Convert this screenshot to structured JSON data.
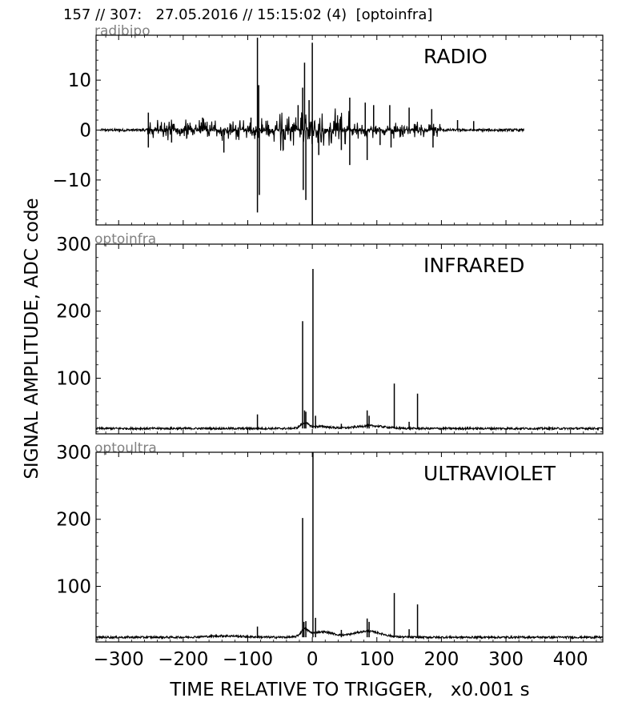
{
  "header": "157 // 307:   27.05.2016 // 15:15:02 (4)  [optoinfra]",
  "ylabel": "SIGNAL AMPLITUDE,  ADC code",
  "xlabel": "TIME RELATIVE TO TRIGGER,   x0.001 s",
  "chart_data": [
    {
      "type": "line",
      "channel": "radibipo",
      "label": "RADIO",
      "xlim": [
        -335,
        450
      ],
      "ylim": [
        -19,
        19
      ],
      "yticks": [
        -10,
        0,
        10
      ],
      "xticks": [
        -300,
        -200,
        -100,
        0,
        100,
        200,
        300,
        400
      ],
      "baseline": 0,
      "span": [
        -328,
        328
      ],
      "noise": 0.25,
      "burst_regions": [
        {
          "from": -255,
          "to": -60,
          "amp": 1.2
        },
        {
          "from": -60,
          "to": 60,
          "amp": 2.5
        },
        {
          "from": 60,
          "to": 200,
          "amp": 1.0
        }
      ],
      "spikes": [
        {
          "x": -254,
          "y": 3.5
        },
        {
          "x": -254,
          "y": -3.5
        },
        {
          "x": -218,
          "y": -2.5
        },
        {
          "x": -170,
          "y": 2.5
        },
        {
          "x": -137,
          "y": -4.5
        },
        {
          "x": -95,
          "y": 2.5
        },
        {
          "x": -85,
          "y": 18.5
        },
        {
          "x": -85,
          "y": -16.5
        },
        {
          "x": -83,
          "y": 9
        },
        {
          "x": -82,
          "y": -13
        },
        {
          "x": -45,
          "y": -4
        },
        {
          "x": -22,
          "y": 5
        },
        {
          "x": -15,
          "y": 8.5
        },
        {
          "x": -14,
          "y": -12
        },
        {
          "x": -12,
          "y": 13.5
        },
        {
          "x": -10,
          "y": -14
        },
        {
          "x": -5,
          "y": 6
        },
        {
          "x": 0,
          "y": 17.5
        },
        {
          "x": 0,
          "y": -19
        },
        {
          "x": 10,
          "y": -5
        },
        {
          "x": 45,
          "y": -4
        },
        {
          "x": 58,
          "y": 6.5
        },
        {
          "x": 58,
          "y": -7
        },
        {
          "x": 82,
          "y": 5.5
        },
        {
          "x": 85,
          "y": -6
        },
        {
          "x": 95,
          "y": 5
        },
        {
          "x": 105,
          "y": -3
        },
        {
          "x": 120,
          "y": 5
        },
        {
          "x": 122,
          "y": -3.5
        },
        {
          "x": 150,
          "y": 4.5
        },
        {
          "x": 185,
          "y": 4.2
        },
        {
          "x": 187,
          "y": -3.5
        },
        {
          "x": 225,
          "y": 2
        },
        {
          "x": 250,
          "y": 1.8
        }
      ]
    },
    {
      "type": "line",
      "channel": "optoinfra",
      "label": "INFRARED",
      "xlim": [
        -335,
        450
      ],
      "ylim": [
        17,
        300
      ],
      "yticks": [
        100,
        200,
        300
      ],
      "xticks": [
        -300,
        -200,
        -100,
        0,
        100,
        200,
        300,
        400
      ],
      "baseline": 25,
      "span": [
        -335,
        450
      ],
      "noise": 1.5,
      "bumps": [
        {
          "center": -12,
          "width": 8,
          "height": 7
        },
        {
          "center": 10,
          "width": 25,
          "height": 3
        },
        {
          "center": 90,
          "width": 30,
          "height": 4
        }
      ],
      "spikes": [
        {
          "x": -85,
          "y": 46
        },
        {
          "x": -15,
          "y": 185
        },
        {
          "x": -12,
          "y": 52
        },
        {
          "x": -10,
          "y": 50
        },
        {
          "x": 1,
          "y": 263
        },
        {
          "x": 5,
          "y": 44
        },
        {
          "x": 45,
          "y": 32
        },
        {
          "x": 85,
          "y": 52
        },
        {
          "x": 88,
          "y": 44
        },
        {
          "x": 127,
          "y": 92
        },
        {
          "x": 150,
          "y": 35
        },
        {
          "x": 163,
          "y": 77
        }
      ]
    },
    {
      "type": "line",
      "channel": "optoultra",
      "label": "ULTRAVIOLET",
      "xlim": [
        -335,
        450
      ],
      "ylim": [
        17,
        300
      ],
      "yticks": [
        100,
        200,
        300
      ],
      "xticks": [
        -300,
        -200,
        -100,
        0,
        100,
        200,
        300,
        400
      ],
      "xticklabels": [
        "−300",
        "−200",
        "−100",
        "0",
        "100",
        "200",
        "300",
        "400"
      ],
      "baseline": 24,
      "span": [
        -335,
        450
      ],
      "noise": 1.5,
      "bumps": [
        {
          "center": -135,
          "width": 40,
          "height": 2
        },
        {
          "center": -12,
          "width": 8,
          "height": 10
        },
        {
          "center": 15,
          "width": 25,
          "height": 8
        },
        {
          "center": 85,
          "width": 30,
          "height": 9
        }
      ],
      "spikes": [
        {
          "x": -85,
          "y": 40
        },
        {
          "x": -15,
          "y": 202
        },
        {
          "x": -13,
          "y": 47
        },
        {
          "x": -10,
          "y": 48
        },
        {
          "x": 1,
          "y": 300
        },
        {
          "x": 5,
          "y": 53
        },
        {
          "x": 45,
          "y": 35
        },
        {
          "x": 85,
          "y": 52
        },
        {
          "x": 88,
          "y": 47
        },
        {
          "x": 127,
          "y": 90
        },
        {
          "x": 150,
          "y": 36
        },
        {
          "x": 163,
          "y": 73
        }
      ]
    }
  ]
}
